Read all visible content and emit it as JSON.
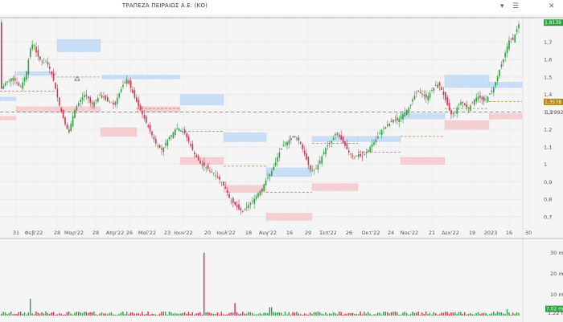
{
  "header": {
    "title": "ΤΡΑΠΕΖΑ ΠΕΙΡΑΙΩΣ Α.Ε. (ΚΟ)",
    "dropdown_icon": "chevron-down-icon",
    "menu_icon": "hamburger-menu-icon",
    "close_icon": "close-icon"
  },
  "colors": {
    "up": "#2ea043",
    "down": "#d4344a",
    "background": "#f5f5f5",
    "zone_blue": "#bcd8f6",
    "zone_red": "#f6c6cb",
    "last_price_tag": "#2ea043",
    "level_tag": "#b8860b",
    "ref_tag": "#d4344a"
  },
  "price_tags": {
    "last": "1,8139",
    "level": "1,3578",
    "ref": "1,2992"
  },
  "volume_tags": {
    "last": "7,02 m",
    "baseline": "1,22 m"
  },
  "chart_data": {
    "type": "candlestick",
    "title": "",
    "x_tick_labels": [
      "31",
      "Φεβ'22",
      "28",
      "Μαρ'22",
      "28",
      "Απρ'22",
      "26",
      "Μαϊ'22",
      "23",
      "Ιουν'22",
      "20",
      "Ιουλ'22",
      "18",
      "Αυγ'22",
      "16",
      "29",
      "Σεπ'22",
      "26",
      "Οκτ'22",
      "24",
      "Νοε'22",
      "21",
      "Δεκ'22",
      "19",
      "2023",
      "16",
      "30"
    ],
    "price_axis": {
      "ticks": [
        "1,8139",
        "1,7",
        "1,6",
        "1,5",
        "1,4",
        "1,3",
        "1,2992",
        "1,2",
        "1,1",
        "1",
        "0,9",
        "0,8",
        "0,7"
      ],
      "ylim": [
        0.64,
        1.84
      ]
    },
    "volume_axis": {
      "ticks": [
        "30 m",
        "20 m",
        "10 m",
        "7,02 m",
        "1,22 m"
      ],
      "ylim": [
        0,
        36
      ]
    },
    "reference_line": 1.2992,
    "last_price": 1.8139,
    "price_path": [
      [
        0,
        1.42
      ],
      [
        8,
        1.47
      ],
      [
        16,
        1.5
      ],
      [
        22,
        1.46
      ],
      [
        26,
        1.44
      ],
      [
        33,
        1.52
      ],
      [
        38,
        1.66
      ],
      [
        42,
        1.7
      ],
      [
        46,
        1.63
      ],
      [
        50,
        1.6
      ],
      [
        54,
        1.58
      ],
      [
        58,
        1.59
      ],
      [
        62,
        1.55
      ],
      [
        66,
        1.5
      ],
      [
        70,
        1.42
      ],
      [
        74,
        1.34
      ],
      [
        78,
        1.28
      ],
      [
        82,
        1.22
      ],
      [
        86,
        1.18
      ],
      [
        90,
        1.26
      ],
      [
        94,
        1.32
      ],
      [
        98,
        1.35
      ],
      [
        102,
        1.38
      ],
      [
        106,
        1.4
      ],
      [
        110,
        1.38
      ],
      [
        114,
        1.34
      ],
      [
        118,
        1.36
      ],
      [
        122,
        1.38
      ],
      [
        126,
        1.4
      ],
      [
        130,
        1.38
      ],
      [
        134,
        1.36
      ],
      [
        138,
        1.36
      ],
      [
        142,
        1.34
      ],
      [
        146,
        1.38
      ],
      [
        150,
        1.42
      ],
      [
        154,
        1.46
      ],
      [
        158,
        1.49
      ],
      [
        162,
        1.45
      ],
      [
        166,
        1.4
      ],
      [
        170,
        1.36
      ],
      [
        174,
        1.32
      ],
      [
        178,
        1.28
      ],
      [
        182,
        1.24
      ],
      [
        186,
        1.2
      ],
      [
        190,
        1.16
      ],
      [
        194,
        1.12
      ],
      [
        198,
        1.1
      ],
      [
        202,
        1.08
      ],
      [
        206,
        1.12
      ],
      [
        210,
        1.15
      ],
      [
        214,
        1.17
      ],
      [
        218,
        1.2
      ],
      [
        222,
        1.21
      ],
      [
        226,
        1.19
      ],
      [
        230,
        1.18
      ],
      [
        234,
        1.14
      ],
      [
        238,
        1.1
      ],
      [
        242,
        1.06
      ],
      [
        246,
        1.03
      ],
      [
        250,
        1.0
      ],
      [
        254,
        0.99
      ],
      [
        258,
        0.98
      ],
      [
        262,
        0.96
      ],
      [
        266,
        0.95
      ],
      [
        270,
        0.93
      ],
      [
        274,
        0.91
      ],
      [
        278,
        0.88
      ],
      [
        282,
        0.85
      ],
      [
        286,
        0.8
      ],
      [
        290,
        0.78
      ],
      [
        294,
        0.76
      ],
      [
        298,
        0.74
      ],
      [
        302,
        0.73
      ],
      [
        306,
        0.75
      ],
      [
        310,
        0.77
      ],
      [
        314,
        0.79
      ],
      [
        318,
        0.81
      ],
      [
        322,
        0.84
      ],
      [
        326,
        0.86
      ],
      [
        330,
        0.9
      ],
      [
        334,
        0.93
      ],
      [
        338,
        0.96
      ],
      [
        342,
        1.0
      ],
      [
        346,
        1.05
      ],
      [
        350,
        1.09
      ],
      [
        354,
        1.12
      ],
      [
        358,
        1.13
      ],
      [
        362,
        1.15
      ],
      [
        366,
        1.16
      ],
      [
        370,
        1.15
      ],
      [
        374,
        1.12
      ],
      [
        378,
        1.07
      ],
      [
        382,
        1.02
      ],
      [
        386,
        0.97
      ],
      [
        390,
        0.96
      ],
      [
        394,
        0.98
      ],
      [
        398,
        1.02
      ],
      [
        402,
        1.06
      ],
      [
        406,
        1.1
      ],
      [
        410,
        1.12
      ],
      [
        414,
        1.14
      ],
      [
        418,
        1.18
      ],
      [
        422,
        1.16
      ],
      [
        426,
        1.13
      ],
      [
        430,
        1.1
      ],
      [
        434,
        1.07
      ],
      [
        438,
        1.05
      ],
      [
        442,
        1.04
      ],
      [
        446,
        1.06
      ],
      [
        450,
        1.04
      ],
      [
        454,
        1.06
      ],
      [
        458,
        1.08
      ],
      [
        462,
        1.11
      ],
      [
        466,
        1.13
      ],
      [
        470,
        1.16
      ],
      [
        474,
        1.19
      ],
      [
        478,
        1.21
      ],
      [
        482,
        1.22
      ],
      [
        486,
        1.24
      ],
      [
        490,
        1.26
      ],
      [
        494,
        1.25
      ],
      [
        498,
        1.27
      ],
      [
        502,
        1.29
      ],
      [
        506,
        1.31
      ],
      [
        510,
        1.33
      ],
      [
        514,
        1.38
      ],
      [
        518,
        1.41
      ],
      [
        522,
        1.42
      ],
      [
        526,
        1.4
      ],
      [
        530,
        1.38
      ],
      [
        534,
        1.4
      ],
      [
        538,
        1.43
      ],
      [
        542,
        1.45
      ],
      [
        546,
        1.46
      ],
      [
        550,
        1.42
      ],
      [
        554,
        1.37
      ],
      [
        558,
        1.32
      ],
      [
        562,
        1.28
      ],
      [
        566,
        1.3
      ],
      [
        570,
        1.34
      ],
      [
        574,
        1.36
      ],
      [
        578,
        1.34
      ],
      [
        582,
        1.32
      ],
      [
        586,
        1.34
      ],
      [
        590,
        1.37
      ],
      [
        594,
        1.39
      ],
      [
        598,
        1.38
      ],
      [
        602,
        1.36
      ],
      [
        606,
        1.38
      ],
      [
        610,
        1.41
      ],
      [
        614,
        1.44
      ],
      [
        618,
        1.49
      ],
      [
        622,
        1.55
      ],
      [
        626,
        1.6
      ],
      [
        630,
        1.66
      ],
      [
        634,
        1.72
      ],
      [
        638,
        1.71
      ],
      [
        642,
        1.76
      ],
      [
        645,
        1.8
      ],
      [
        647,
        1.8139
      ]
    ],
    "volume_spikes": [
      [
        253,
        30
      ],
      [
        37,
        8
      ],
      [
        292,
        6
      ],
      [
        336,
        4
      ],
      [
        629,
        3
      ]
    ],
    "zones": [
      {
        "type": "supply",
        "x": [
          0,
          20
        ],
        "y": [
          1.365,
          1.385
        ]
      },
      {
        "type": "supply",
        "x": [
          18,
          70
        ],
        "y": [
          1.51,
          1.53
        ]
      },
      {
        "type": "supply",
        "x": [
          71,
          125
        ],
        "y": [
          1.645,
          1.715
        ]
      },
      {
        "type": "supply",
        "x": [
          127,
          170
        ],
        "y": [
          1.49,
          1.51
        ]
      },
      {
        "type": "supply",
        "x": [
          170,
          224
        ],
        "y": [
          1.49,
          1.51
        ]
      },
      {
        "type": "supply",
        "x": [
          224,
          278
        ],
        "y": [
          1.34,
          1.4
        ]
      },
      {
        "type": "supply",
        "x": [
          278,
          331
        ],
        "y": [
          1.13,
          1.18
        ]
      },
      {
        "type": "supply",
        "x": [
          331,
          388
        ],
        "y": [
          0.93,
          0.98
        ]
      },
      {
        "type": "supply",
        "x": [
          388,
          445
        ],
        "y": [
          1.13,
          1.16
        ]
      },
      {
        "type": "supply",
        "x": [
          445,
          498
        ],
        "y": [
          1.13,
          1.16
        ]
      },
      {
        "type": "supply",
        "x": [
          498,
          553
        ],
        "y": [
          1.26,
          1.29
        ]
      },
      {
        "type": "supply",
        "x": [
          553,
          608
        ],
        "y": [
          1.44,
          1.51
        ]
      },
      {
        "type": "supply",
        "x": [
          608,
          649
        ],
        "y": [
          1.44,
          1.47
        ]
      },
      {
        "type": "demand",
        "x": [
          0,
          20
        ],
        "y": [
          1.255,
          1.275
        ]
      },
      {
        "type": "demand",
        "x": [
          20,
          70
        ],
        "y": [
          1.3,
          1.33
        ]
      },
      {
        "type": "demand",
        "x": [
          70,
          125
        ],
        "y": [
          1.3,
          1.33
        ]
      },
      {
        "type": "demand",
        "x": [
          125,
          170
        ],
        "y": [
          1.16,
          1.21
        ]
      },
      {
        "type": "demand",
        "x": [
          170,
          224
        ],
        "y": [
          1.3,
          1.33
        ]
      },
      {
        "type": "demand",
        "x": [
          224,
          278
        ],
        "y": [
          1.0,
          1.04
        ]
      },
      {
        "type": "demand",
        "x": [
          278,
          331
        ],
        "y": [
          0.84,
          0.88
        ]
      },
      {
        "type": "demand",
        "x": [
          331,
          388
        ],
        "y": [
          0.68,
          0.72
        ]
      },
      {
        "type": "demand",
        "x": [
          388,
          445
        ],
        "y": [
          0.85,
          0.89
        ]
      },
      {
        "type": "demand",
        "x": [
          498,
          553
        ],
        "y": [
          1.0,
          1.04
        ]
      },
      {
        "type": "demand",
        "x": [
          553,
          608
        ],
        "y": [
          1.2,
          1.25
        ]
      },
      {
        "type": "demand",
        "x": [
          608,
          649
        ],
        "y": [
          1.26,
          1.29
        ]
      }
    ],
    "dashed_levels": [
      {
        "x": [
          0,
          70
        ],
        "y": 1.42
      },
      {
        "x": [
          71,
          125
        ],
        "y": 1.5
      },
      {
        "x": [
          170,
          224
        ],
        "y": 1.32
      },
      {
        "x": [
          224,
          278
        ],
        "y": 1.19
      },
      {
        "x": [
          278,
          331
        ],
        "y": 0.99
      },
      {
        "x": [
          331,
          388
        ],
        "y": 0.84
      },
      {
        "x": [
          388,
          445
        ],
        "y": 1.12
      },
      {
        "x": [
          445,
          498
        ],
        "y": 1.07
      },
      {
        "x": [
          498,
          553
        ],
        "y": 1.16
      },
      {
        "x": [
          553,
          608
        ],
        "y": 1.32
      },
      {
        "x": [
          608,
          649
        ],
        "y": 1.36
      }
    ],
    "markers": [
      {
        "x": 96,
        "y": 1.49,
        "shape": "triangle"
      }
    ],
    "grid": true
  }
}
